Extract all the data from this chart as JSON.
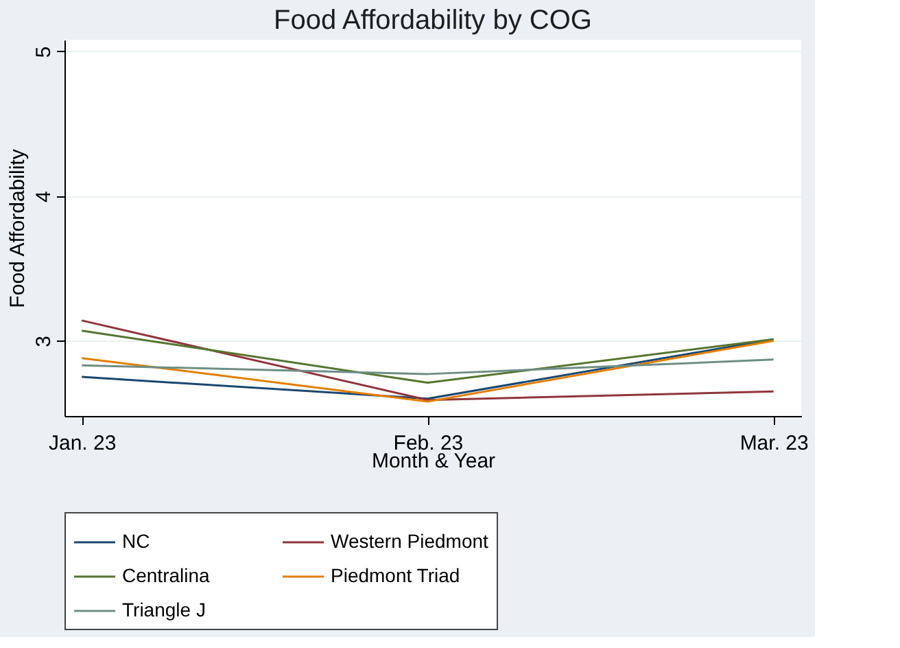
{
  "chart_data": {
    "type": "line",
    "title": "Food Affordability by COG",
    "xlabel": "Month & Year",
    "ylabel": "Food Affordability",
    "categories": [
      "Jan. 23",
      "Feb. 23",
      "Mar. 23"
    ],
    "series": [
      {
        "name": "NC",
        "color": "#1a476f",
        "values": [
          2.75,
          2.6,
          3.01
        ]
      },
      {
        "name": "Western Piedmont",
        "color": "#90353b",
        "values": [
          3.14,
          2.59,
          2.65
        ]
      },
      {
        "name": "Centralina",
        "color": "#55752f",
        "values": [
          3.07,
          2.71,
          3.01
        ]
      },
      {
        "name": "Piedmont Triad",
        "color": "#e37e00",
        "values": [
          2.88,
          2.58,
          3.0
        ]
      },
      {
        "name": "Triangle J",
        "color": "#6e8e84",
        "values": [
          2.83,
          2.77,
          2.87
        ]
      }
    ],
    "ylim": [
      2.48,
      5.08
    ],
    "yticks": [
      3,
      4,
      5
    ],
    "grid": "y",
    "legend": "bottom",
    "marker": "none",
    "line_style": "solid"
  }
}
